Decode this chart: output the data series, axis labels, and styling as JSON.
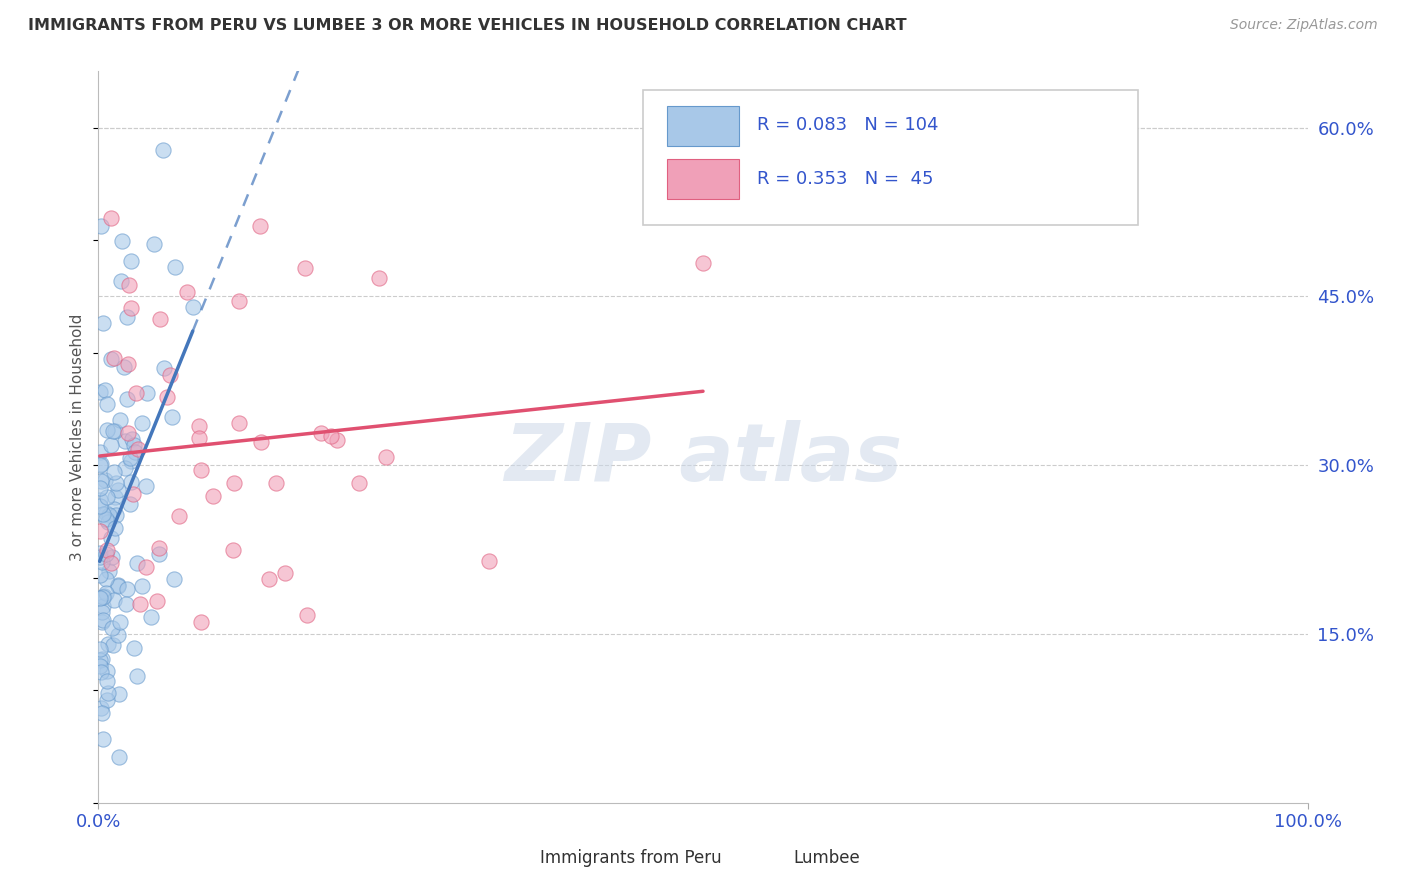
{
  "title": "IMMIGRANTS FROM PERU VS LUMBEE 3 OR MORE VEHICLES IN HOUSEHOLD CORRELATION CHART",
  "source": "Source: ZipAtlas.com",
  "ylabel": "3 or more Vehicles in Household",
  "xlim": [
    0.0,
    1.0
  ],
  "ylim": [
    0.0,
    0.65
  ],
  "y_ticks_right": [
    0.15,
    0.3,
    0.45,
    0.6
  ],
  "y_tick_labels_right": [
    "15.0%",
    "30.0%",
    "45.0%",
    "60.0%"
  ],
  "blue_R": 0.083,
  "blue_N": 104,
  "pink_R": 0.353,
  "pink_N": 45,
  "blue_color": "#a8c8e8",
  "pink_color": "#f0a0b8",
  "blue_edge_color": "#6699cc",
  "pink_edge_color": "#e06080",
  "blue_line_color": "#4477bb",
  "pink_line_color": "#e05070",
  "grid_color": "#cccccc",
  "background_color": "#ffffff",
  "title_color": "#333333",
  "legend_text_color": "#3355cc",
  "watermark_color": "#ccd8e8"
}
